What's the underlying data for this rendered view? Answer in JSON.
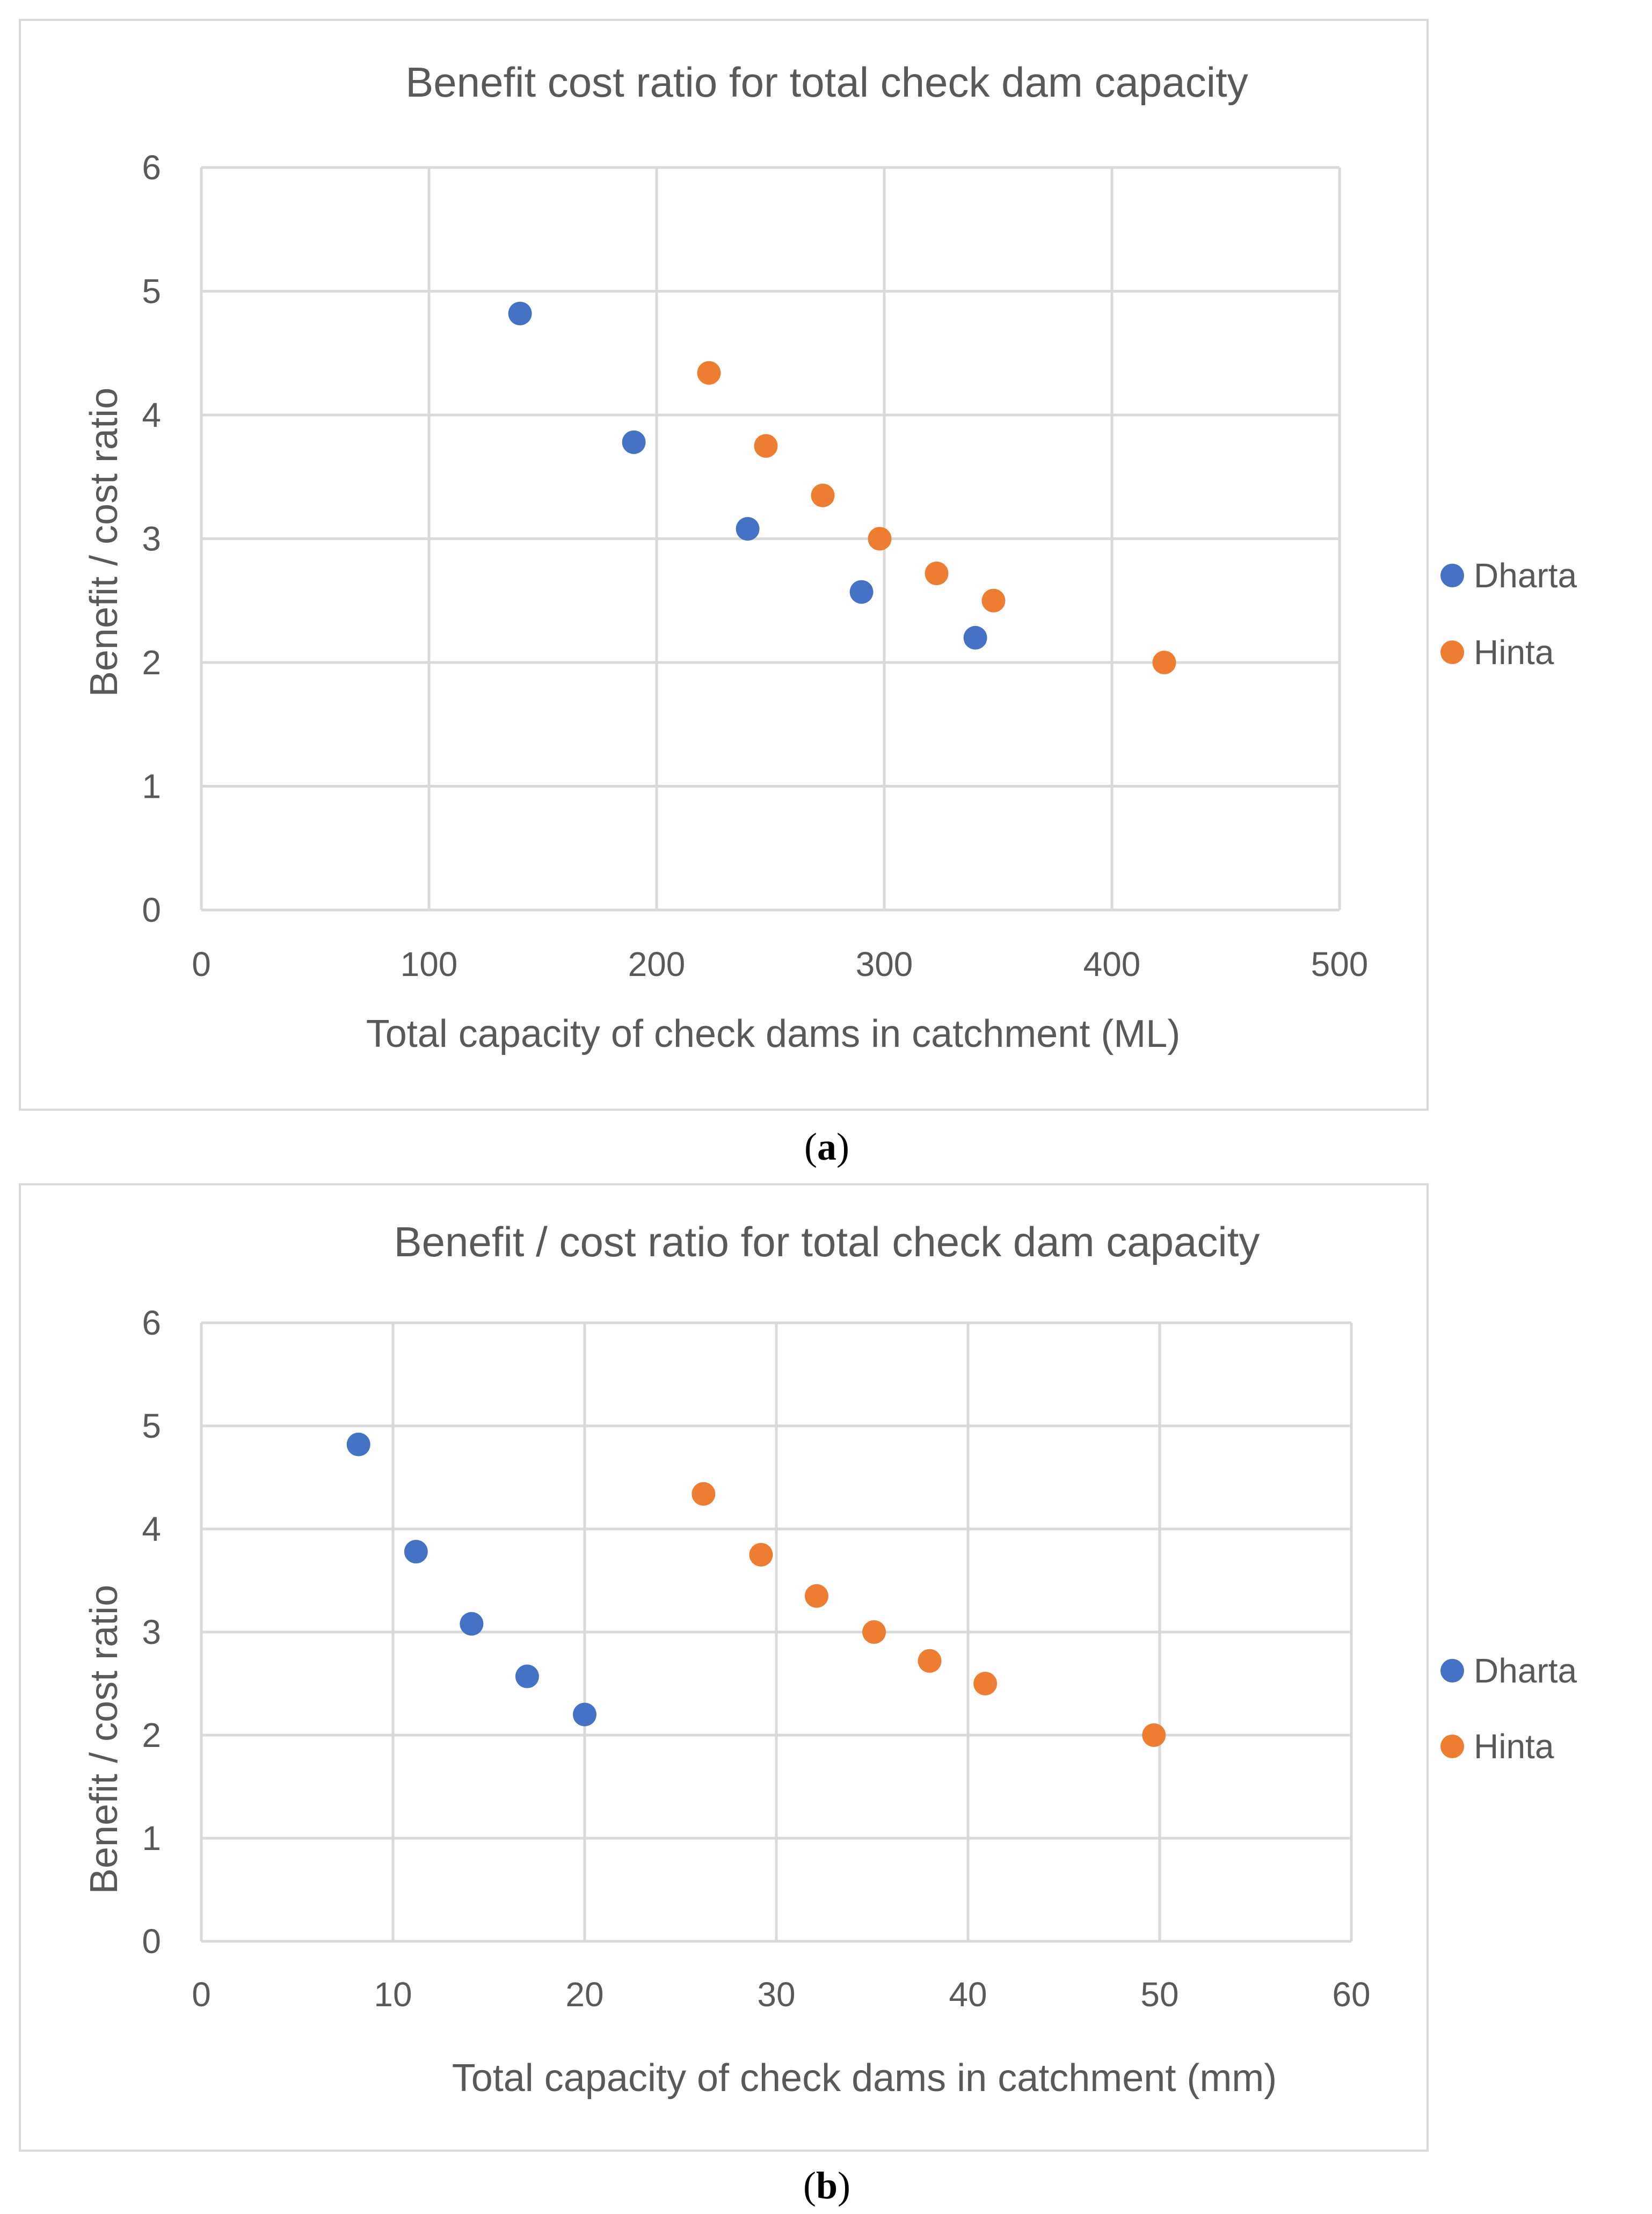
{
  "chart_data": [
    {
      "type": "scatter",
      "panel_label": "a",
      "title": "Benefit cost ratio for total check dam capacity",
      "xlabel": "Total capacity of check dams in catchment (ML)",
      "ylabel": "Benefit / cost ratio",
      "xlim": [
        0,
        500
      ],
      "ylim": [
        0,
        6
      ],
      "xticks": [
        0,
        100,
        200,
        300,
        400,
        500
      ],
      "yticks": [
        0,
        1,
        2,
        3,
        4,
        5,
        6
      ],
      "grid": true,
      "legend_position": "right",
      "series": [
        {
          "name": "Dharta",
          "color": "#4472C4",
          "x": [
            140,
            190,
            240,
            290,
            340
          ],
          "y": [
            4.82,
            3.78,
            3.08,
            2.57,
            2.2
          ]
        },
        {
          "name": "Hinta",
          "color": "#ED7D31",
          "x": [
            223,
            248,
            273,
            298,
            323,
            348,
            423
          ],
          "y": [
            4.34,
            3.75,
            3.35,
            3.0,
            2.72,
            2.5,
            2.0
          ]
        }
      ]
    },
    {
      "type": "scatter",
      "panel_label": "b",
      "title": "Benefit / cost ratio for total check dam capacity",
      "xlabel": "Total capacity of check dams in catchment (mm)",
      "ylabel": "Benefit / cost ratio",
      "xlim": [
        0,
        60
      ],
      "ylim": [
        0,
        6
      ],
      "xticks": [
        0,
        10,
        20,
        30,
        40,
        50,
        60
      ],
      "yticks": [
        0,
        1,
        2,
        3,
        4,
        5,
        6
      ],
      "grid": true,
      "legend_position": "right",
      "series": [
        {
          "name": "Dharta",
          "color": "#4472C4",
          "x": [
            8.2,
            11.2,
            14.1,
            17.0,
            20.0
          ],
          "y": [
            4.82,
            3.78,
            3.08,
            2.57,
            2.2
          ]
        },
        {
          "name": "Hinta",
          "color": "#ED7D31",
          "x": [
            26.2,
            29.2,
            32.1,
            35.1,
            38.0,
            40.9,
            49.7
          ],
          "y": [
            4.34,
            3.75,
            3.35,
            3.0,
            2.72,
            2.5,
            2.0
          ]
        }
      ]
    }
  ]
}
